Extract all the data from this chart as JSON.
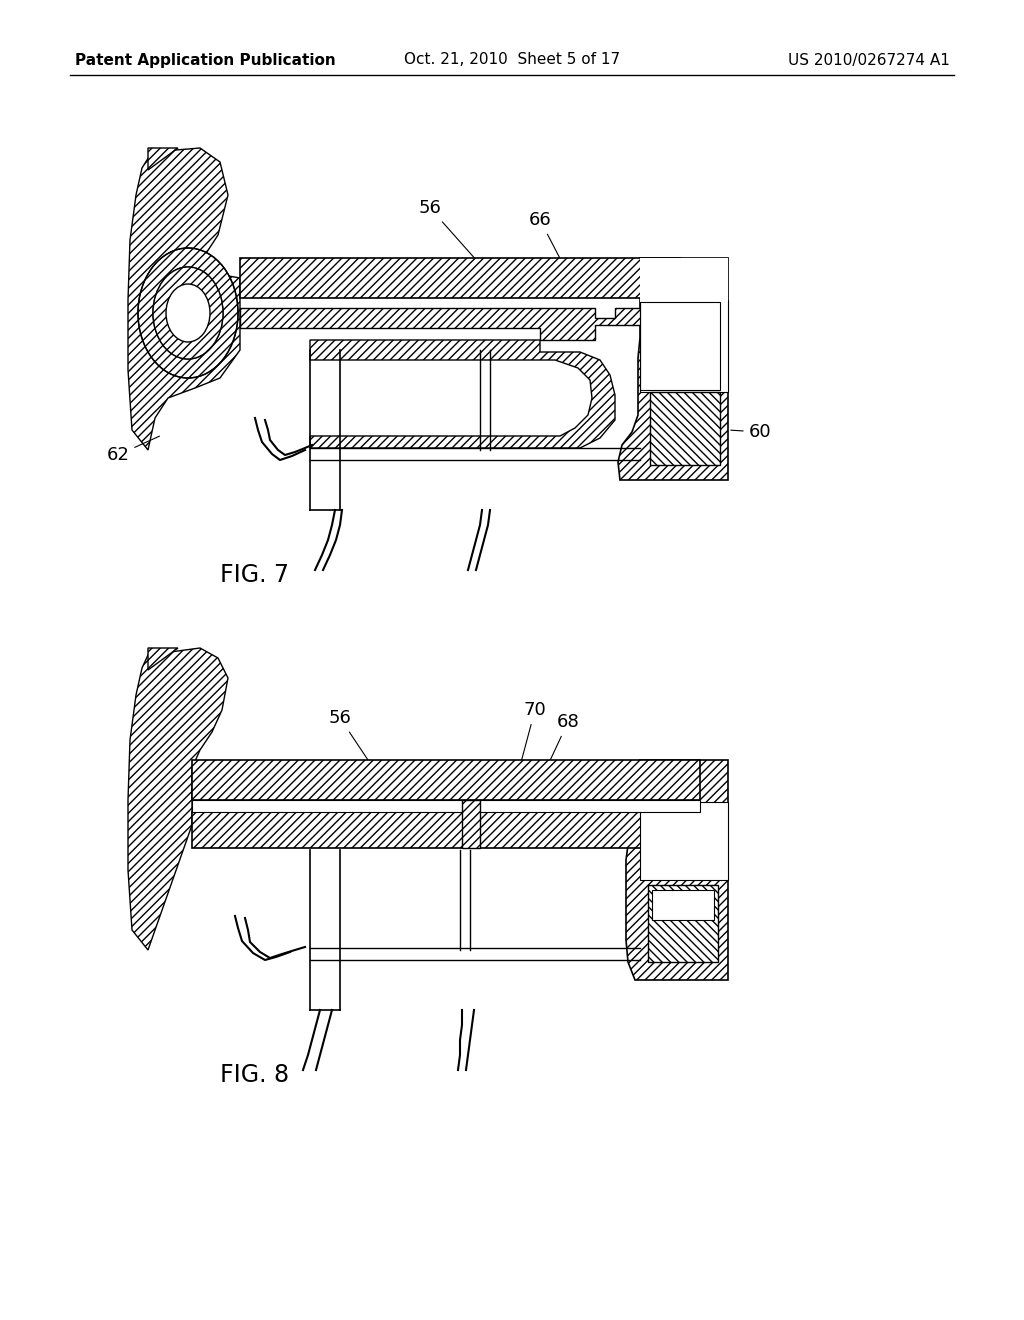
{
  "background_color": "#ffffff",
  "header_left": "Patent Application Publication",
  "header_center": "Oct. 21, 2010  Sheet 5 of 17",
  "header_right": "US 2010/0267274 A1",
  "header_fontsize": 11,
  "fig7_label": "FIG. 7",
  "fig8_label": "FIG. 8",
  "annotation_fontsize": 13,
  "line_color": "#000000"
}
